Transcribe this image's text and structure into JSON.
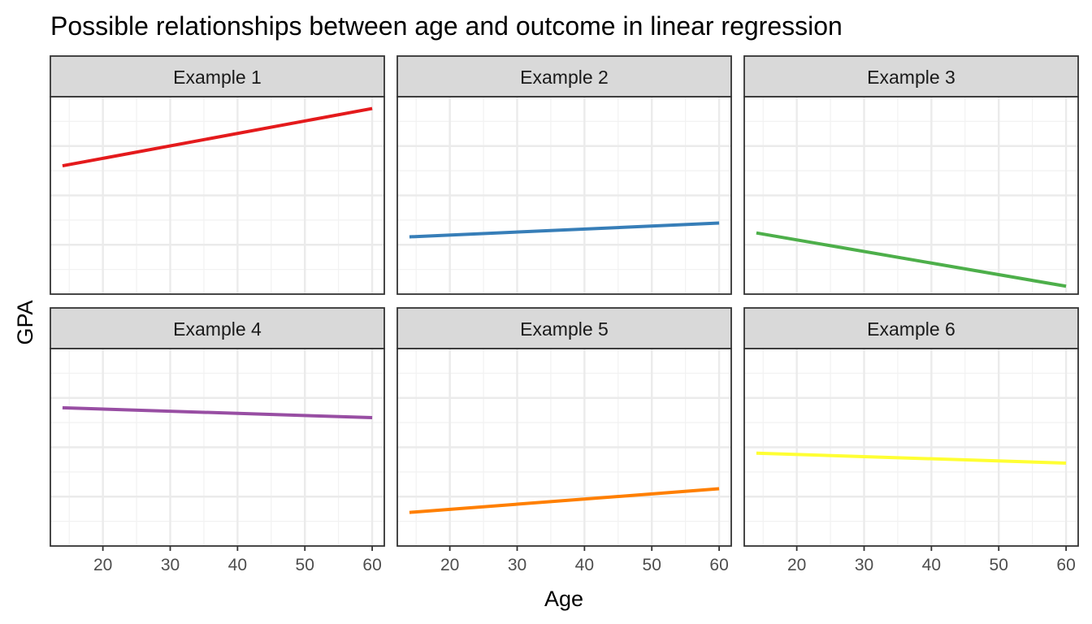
{
  "chart_data": {
    "type": "line",
    "title": "Possible relationships between age and outcome in linear regression",
    "xlabel": "Age",
    "ylabel": "GPA",
    "xlim": [
      12.2,
      61.8
    ],
    "ylim": [
      0,
      1
    ],
    "x_ticks": [
      20,
      30,
      40,
      50,
      60
    ],
    "x_tick_labels": [
      "20",
      "30",
      "40",
      "50",
      "60"
    ],
    "y_tick_labels_shown": false,
    "grid": true,
    "facet_layout": {
      "rows": 2,
      "cols": 3
    },
    "panels": [
      {
        "label": "Example 1",
        "color": "#E41A1C",
        "x": [
          14,
          60
        ],
        "y": [
          0.65,
          0.94
        ]
      },
      {
        "label": "Example 2",
        "color": "#377EB8",
        "x": [
          14,
          60
        ],
        "y": [
          0.29,
          0.36
        ]
      },
      {
        "label": "Example 3",
        "color": "#4DAF4A",
        "x": [
          14,
          60
        ],
        "y": [
          0.31,
          0.04
        ]
      },
      {
        "label": "Example 4",
        "color": "#984EA3",
        "x": [
          14,
          60
        ],
        "y": [
          0.7,
          0.65
        ]
      },
      {
        "label": "Example 5",
        "color": "#FF7F00",
        "x": [
          14,
          60
        ],
        "y": [
          0.17,
          0.29
        ]
      },
      {
        "label": "Example 6",
        "color": "#FFFF33",
        "x": [
          14,
          60
        ],
        "y": [
          0.47,
          0.42
        ]
      }
    ]
  }
}
